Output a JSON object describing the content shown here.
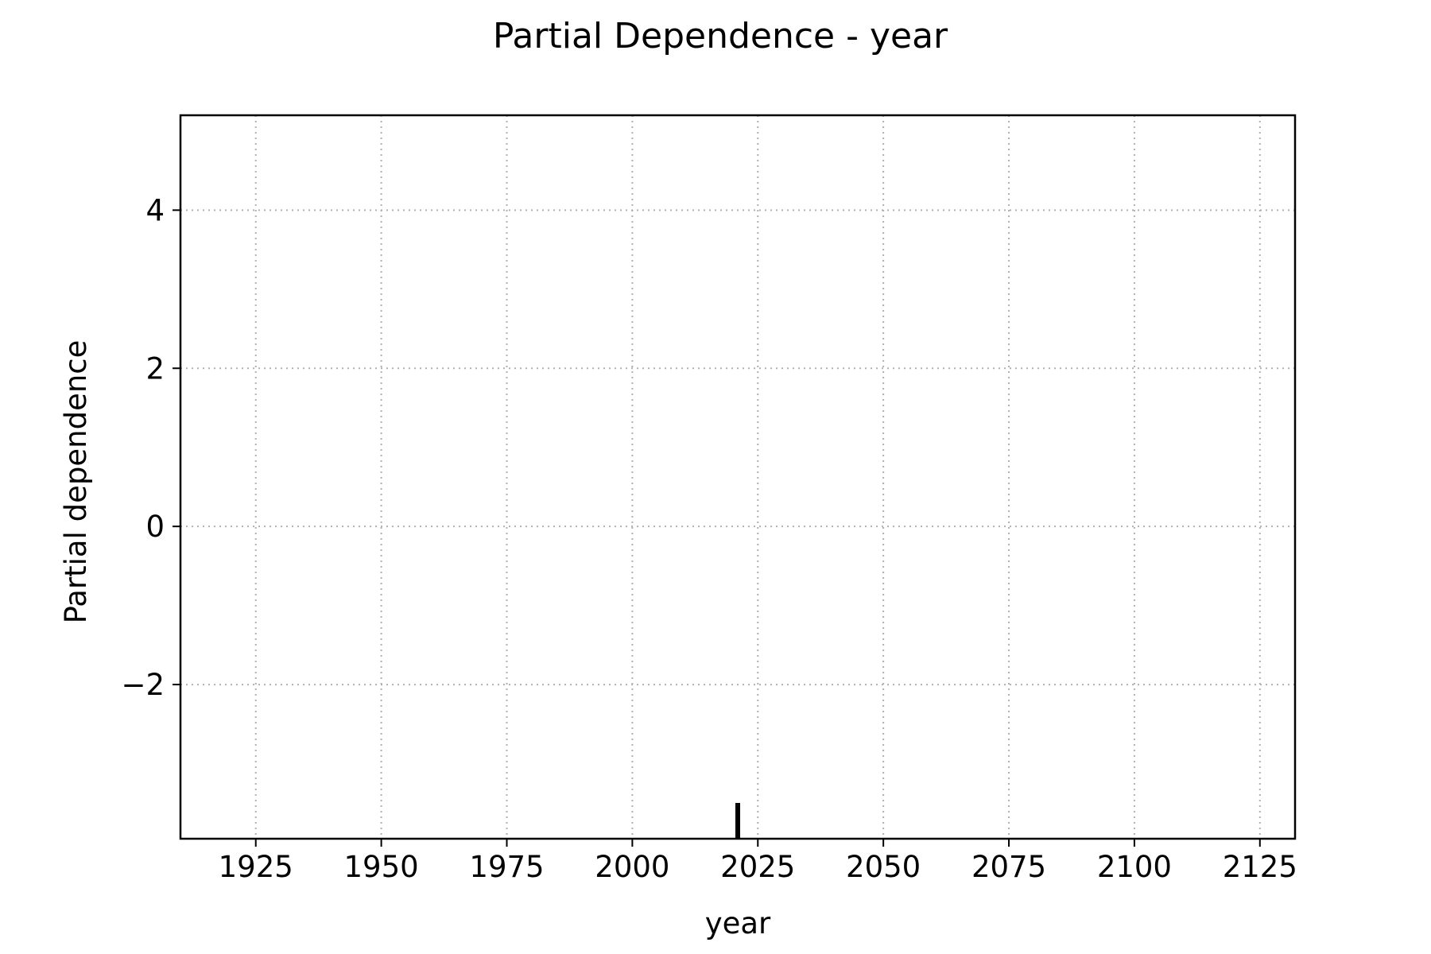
{
  "chart_data": {
    "type": "line",
    "title": "Partial Dependence - year",
    "xlabel": "year",
    "ylabel": "Partial dependence",
    "xlim": [
      1910,
      2132
    ],
    "ylim": [
      -3.95,
      5.2
    ],
    "xticks": [
      1925,
      1950,
      1975,
      2000,
      2025,
      2050,
      2075,
      2100,
      2125
    ],
    "xtick_labels": [
      "1925",
      "1950",
      "1975",
      "2000",
      "2025",
      "2050",
      "2075",
      "2100",
      "2125"
    ],
    "yticks": [
      -2,
      0,
      2,
      4
    ],
    "ytick_labels": [
      "−2",
      "0",
      "2",
      "4"
    ],
    "grid": true,
    "grid_style": "dotted",
    "series": [],
    "rug": [
      2021
    ],
    "colors": {
      "axis": "#000000",
      "grid": "#b0b0b0",
      "rug": "#000000"
    }
  }
}
